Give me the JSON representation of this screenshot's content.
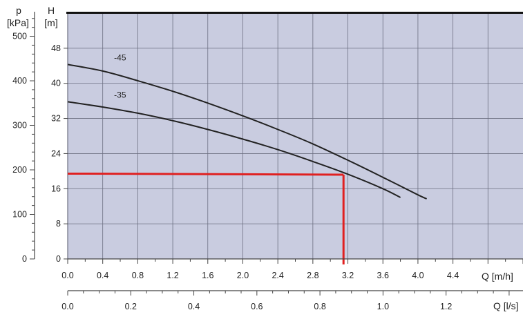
{
  "chart_data": {
    "type": "line",
    "title": "",
    "axes": {
      "p": {
        "symbol": "p",
        "unit": "[kPa]",
        "ticks": [
          0,
          100,
          200,
          300,
          400,
          500
        ],
        "range": [
          0,
          552
        ]
      },
      "H": {
        "symbol": "H",
        "unit": "[m]",
        "ticks": [
          0,
          8,
          16,
          24,
          32,
          40,
          48
        ],
        "range": [
          0,
          56
        ]
      },
      "Q_m3h": {
        "label": "Q [m/h]",
        "ticks": [
          "0.0",
          "0.4",
          "0.8",
          "1.2",
          "1.6",
          "2.0",
          "2.4",
          "2.8",
          "3.2",
          "3.6",
          "4.0",
          "4.4"
        ],
        "range": [
          0,
          5.2
        ]
      },
      "Q_ls": {
        "label": "Q [l/s]",
        "ticks": [
          "0.0",
          "0.2",
          "0.4",
          "0.6",
          "0.8",
          "1.0",
          "1.2"
        ],
        "range": [
          0,
          1.444
        ]
      }
    },
    "grid": true,
    "plot_background": "#c9cce0",
    "series": [
      {
        "name": "-45",
        "color": "#222222",
        "x": [
          0.0,
          0.4,
          0.8,
          1.2,
          1.6,
          2.0,
          2.4,
          2.8,
          3.2,
          3.6,
          4.0,
          4.1
        ],
        "y": [
          44.3,
          42.8,
          40.6,
          38.2,
          35.5,
          32.6,
          29.5,
          26.2,
          22.5,
          18.6,
          14.6,
          13.7
        ]
      },
      {
        "name": "-35",
        "color": "#222222",
        "x": [
          0.0,
          0.4,
          0.8,
          1.2,
          1.6,
          2.0,
          2.4,
          2.8,
          3.2,
          3.6,
          3.8
        ],
        "y": [
          35.8,
          34.6,
          33.2,
          31.5,
          29.5,
          27.3,
          24.9,
          22.2,
          19.3,
          16.0,
          14.0
        ]
      }
    ],
    "duty_point": {
      "color": "#e02020",
      "Q": 3.15,
      "H": 19.2
    }
  }
}
